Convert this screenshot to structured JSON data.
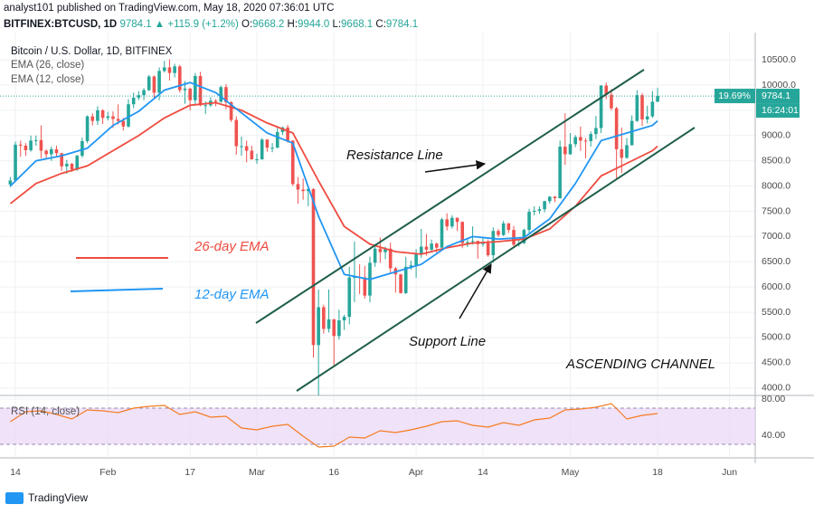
{
  "header": {
    "publisher": "analyst101 published on TradingView.com, May 18, 2020 07:36:01 UTC",
    "symbol": "BITFINEX:BTCUSD, 1D",
    "quote": "9784.1 ▲ +115.9 (+1.2%)",
    "ohlc": [
      {
        "label": "O:",
        "value": "9668.2"
      },
      {
        "label": "H:",
        "value": "9944.0"
      },
      {
        "label": "L:",
        "value": "9668.1"
      },
      {
        "label": "C:",
        "value": "9784.1"
      }
    ]
  },
  "chart_data": [
    {
      "type": "candlestick",
      "title": "Bitcoin / U.S. Dollar, 1D, BITFINEX",
      "up_color": "#26a69a",
      "down_color": "#ef5350",
      "x": [
        "2020-01-13",
        "2020-01-14",
        "2020-01-15",
        "2020-01-16",
        "2020-01-17",
        "2020-01-18",
        "2020-01-19",
        "2020-01-20",
        "2020-01-21",
        "2020-01-22",
        "2020-01-23",
        "2020-01-24",
        "2020-01-25",
        "2020-01-26",
        "2020-01-27",
        "2020-01-28",
        "2020-01-29",
        "2020-01-30",
        "2020-01-31",
        "2020-02-01",
        "2020-02-02",
        "2020-02-03",
        "2020-02-04",
        "2020-02-05",
        "2020-02-06",
        "2020-02-07",
        "2020-02-08",
        "2020-02-09",
        "2020-02-10",
        "2020-02-11",
        "2020-02-12",
        "2020-02-13",
        "2020-02-14",
        "2020-02-15",
        "2020-02-16",
        "2020-02-17",
        "2020-02-18",
        "2020-02-19",
        "2020-02-20",
        "2020-02-21",
        "2020-02-22",
        "2020-02-23",
        "2020-02-24",
        "2020-02-25",
        "2020-02-26",
        "2020-02-27",
        "2020-02-28",
        "2020-02-29",
        "2020-03-01",
        "2020-03-02",
        "2020-03-03",
        "2020-03-04",
        "2020-03-05",
        "2020-03-06",
        "2020-03-07",
        "2020-03-08",
        "2020-03-09",
        "2020-03-10",
        "2020-03-11",
        "2020-03-12",
        "2020-03-13",
        "2020-03-14",
        "2020-03-15",
        "2020-03-16",
        "2020-03-17",
        "2020-03-18",
        "2020-03-19",
        "2020-03-20",
        "2020-03-21",
        "2020-03-22",
        "2020-03-23",
        "2020-03-24",
        "2020-03-25",
        "2020-03-26",
        "2020-03-27",
        "2020-03-28",
        "2020-03-29",
        "2020-03-30",
        "2020-03-31",
        "2020-04-01",
        "2020-04-02",
        "2020-04-03",
        "2020-04-04",
        "2020-04-05",
        "2020-04-06",
        "2020-04-07",
        "2020-04-08",
        "2020-04-09",
        "2020-04-10",
        "2020-04-11",
        "2020-04-12",
        "2020-04-13",
        "2020-04-14",
        "2020-04-15",
        "2020-04-16",
        "2020-04-17",
        "2020-04-18",
        "2020-04-19",
        "2020-04-20",
        "2020-04-21",
        "2020-04-22",
        "2020-04-23",
        "2020-04-24",
        "2020-04-25",
        "2020-04-26",
        "2020-04-27",
        "2020-04-28",
        "2020-04-29",
        "2020-04-30",
        "2020-05-01",
        "2020-05-02",
        "2020-05-03",
        "2020-05-04",
        "2020-05-05",
        "2020-05-06",
        "2020-05-07",
        "2020-05-08",
        "2020-05-09",
        "2020-05-10",
        "2020-05-11",
        "2020-05-12",
        "2020-05-13",
        "2020-05-14",
        "2020-05-15",
        "2020-05-16",
        "2020-05-17",
        "2020-05-18"
      ],
      "open": [
        8030,
        8110,
        8820,
        8800,
        8710,
        8900,
        8910,
        8700,
        8630,
        8730,
        8650,
        8390,
        8440,
        8330,
        8600,
        8890,
        9380,
        9290,
        9500,
        9350,
        9380,
        9330,
        9290,
        9180,
        9620,
        9750,
        9800,
        9900,
        10170,
        9850,
        10280,
        10350,
        10240,
        10370,
        9900,
        9930,
        9700,
        10180,
        9600,
        9600,
        9690,
        9670,
        9960,
        9660,
        9310,
        8790,
        8790,
        8700,
        8530,
        8530,
        8920,
        8760,
        8760,
        9070,
        9160,
        8900,
        8040,
        7930,
        7900,
        7940,
        4850,
        5600,
        5170,
        5360,
        5030,
        5340,
        5410,
        6190,
        6200,
        6190,
        5830,
        6480,
        6760,
        6690,
        6760,
        6370,
        6250,
        5880,
        6400,
        6430,
        6650,
        6800,
        6740,
        6860,
        6780,
        7340,
        7200,
        7370,
        7290,
        6870,
        6890,
        6910,
        6850,
        6870,
        6630,
        7110,
        7030,
        7260,
        7130,
        6840,
        6870,
        7130,
        7490,
        7510,
        7540,
        7700,
        7790,
        7760,
        8780,
        8630,
        8830,
        8970,
        8900,
        8890,
        9030,
        9150,
        9990,
        9810,
        9540,
        8730,
        8560,
        8810,
        9290,
        9800,
        9320,
        9380,
        9668.2
      ],
      "high": [
        8180,
        8880,
        8900,
        8850,
        9000,
        9000,
        9200,
        8730,
        8780,
        8800,
        8660,
        8520,
        8460,
        8620,
        8960,
        9400,
        9440,
        9580,
        9520,
        9470,
        9480,
        9620,
        9350,
        9720,
        9850,
        9880,
        9940,
        10200,
        10190,
        10350,
        10480,
        10510,
        10420,
        10400,
        10080,
        9950,
        10240,
        10260,
        9680,
        9760,
        9720,
        9990,
        10020,
        9680,
        9380,
        8980,
        8900,
        8800,
        8640,
        8950,
        8930,
        8850,
        9150,
        9180,
        9210,
        8910,
        8180,
        8150,
        7980,
        7960,
        5950,
        5650,
        5950,
        5370,
        5550,
        5450,
        6400,
        6900,
        6450,
        6420,
        6600,
        6850,
        6980,
        6800,
        6880,
        6400,
        6260,
        6600,
        6520,
        6750,
        7150,
        7050,
        6940,
        6880,
        7370,
        7460,
        7420,
        7380,
        7300,
        6950,
        7200,
        6920,
        6990,
        6940,
        7180,
        7150,
        7310,
        7270,
        7210,
        6950,
        7160,
        7550,
        7600,
        7600,
        7710,
        7800,
        7800,
        8900,
        9440,
        9050,
        9010,
        9180,
        8950,
        9080,
        9390,
        10000,
        10050,
        9920,
        9570,
        9160,
        8950,
        9400,
        9900,
        9840,
        9590,
        9880,
        9944
      ],
      "low": [
        7980,
        8090,
        8580,
        8600,
        8680,
        8800,
        8550,
        8520,
        8500,
        8590,
        8300,
        8240,
        8280,
        8300,
        8560,
        8850,
        9200,
        9210,
        9230,
        9300,
        9150,
        9220,
        9100,
        9160,
        9540,
        9700,
        9700,
        9880,
        9730,
        9700,
        10250,
        10090,
        10150,
        9850,
        9630,
        9500,
        9600,
        9580,
        9430,
        9570,
        9580,
        9650,
        9520,
        9270,
        8620,
        8600,
        8470,
        8520,
        8440,
        8520,
        8680,
        8670,
        8750,
        9010,
        8860,
        8000,
        7650,
        7730,
        7600,
        4600,
        3850,
        5080,
        5100,
        4450,
        4960,
        5150,
        5260,
        5700,
        5860,
        5770,
        5700,
        6400,
        6480,
        6550,
        6280,
        5890,
        5870,
        5860,
        6340,
        6180,
        6580,
        6620,
        6680,
        6680,
        6770,
        7120,
        7160,
        7110,
        6770,
        6790,
        6840,
        6560,
        6800,
        6600,
        6480,
        6990,
        7010,
        7070,
        6780,
        6800,
        6850,
        7030,
        7420,
        7450,
        7480,
        7650,
        7680,
        7750,
        8420,
        8620,
        8770,
        8700,
        8550,
        8780,
        8930,
        9050,
        9720,
        9500,
        8150,
        8260,
        8540,
        8800,
        9270,
        9190,
        9240,
        9350,
        9668.1
      ],
      "close": [
        8110,
        8820,
        8800,
        8710,
        8900,
        8910,
        8700,
        8630,
        8730,
        8650,
        8390,
        8440,
        8330,
        8600,
        8890,
        9380,
        9290,
        9500,
        9350,
        9380,
        9330,
        9290,
        9180,
        9620,
        9750,
        9800,
        9900,
        10170,
        9850,
        10280,
        10350,
        10240,
        10370,
        9900,
        9930,
        9700,
        10180,
        9600,
        9600,
        9690,
        9670,
        9960,
        9660,
        9310,
        8790,
        8790,
        8700,
        8530,
        8530,
        8920,
        8760,
        8760,
        9070,
        9160,
        8900,
        8040,
        7930,
        7900,
        7940,
        4850,
        5600,
        5170,
        5360,
        5030,
        5340,
        5410,
        6190,
        6200,
        6190,
        5830,
        6480,
        6760,
        6690,
        6760,
        6370,
        6250,
        5880,
        6400,
        6430,
        6650,
        6800,
        6740,
        6860,
        6780,
        7340,
        7200,
        7370,
        7290,
        6870,
        6890,
        6910,
        6850,
        6870,
        6630,
        7110,
        7030,
        7260,
        7130,
        6840,
        6870,
        7130,
        7490,
        7510,
        7540,
        7700,
        7790,
        7760,
        8780,
        8630,
        8830,
        8970,
        8900,
        8890,
        9030,
        9150,
        9990,
        9810,
        9540,
        8730,
        8560,
        8810,
        9290,
        9800,
        9320,
        9380,
        9670,
        9784.1
      ],
      "series": [
        {
          "name": "EMA (26, close)",
          "color": "#ef4b3f",
          "x": [
            "2020-01-13",
            "2020-01-18",
            "2020-01-23",
            "2020-01-28",
            "2020-02-02",
            "2020-02-07",
            "2020-02-12",
            "2020-02-17",
            "2020-02-22",
            "2020-02-27",
            "2020-03-03",
            "2020-03-08",
            "2020-03-13",
            "2020-03-18",
            "2020-03-23",
            "2020-03-28",
            "2020-04-02",
            "2020-04-07",
            "2020-04-12",
            "2020-04-17",
            "2020-04-22",
            "2020-04-27",
            "2020-05-02",
            "2020-05-07",
            "2020-05-12",
            "2020-05-17",
            "2020-05-18"
          ],
          "values": [
            7650,
            8050,
            8250,
            8400,
            8700,
            9000,
            9350,
            9600,
            9650,
            9500,
            9250,
            9050,
            8100,
            7200,
            6850,
            6700,
            6650,
            6780,
            6870,
            6900,
            6950,
            7150,
            7600,
            8200,
            8450,
            8700,
            8790
          ]
        },
        {
          "name": "EMA (12, close)",
          "color": "#2196f3",
          "x": [
            "2020-01-13",
            "2020-01-18",
            "2020-01-23",
            "2020-01-28",
            "2020-02-02",
            "2020-02-07",
            "2020-02-12",
            "2020-02-17",
            "2020-02-22",
            "2020-02-27",
            "2020-03-03",
            "2020-03-08",
            "2020-03-13",
            "2020-03-18",
            "2020-03-23",
            "2020-03-28",
            "2020-04-02",
            "2020-04-07",
            "2020-04-12",
            "2020-04-17",
            "2020-04-22",
            "2020-04-27",
            "2020-05-02",
            "2020-05-07",
            "2020-05-12",
            "2020-05-17",
            "2020-05-18"
          ],
          "values": [
            8000,
            8500,
            8600,
            8750,
            9200,
            9480,
            9900,
            10050,
            9850,
            9450,
            9050,
            8850,
            7400,
            6250,
            6150,
            6300,
            6450,
            6800,
            7000,
            6950,
            6980,
            7350,
            8050,
            8900,
            9050,
            9200,
            9290
          ]
        }
      ],
      "xlim": [
        "2020-01-11",
        "2020-06-06"
      ],
      "xticks": [
        {
          "value": "2020-01-14",
          "label": "14"
        },
        {
          "value": "2020-02-01",
          "label": "Feb"
        },
        {
          "value": "2020-02-17",
          "label": "17"
        },
        {
          "value": "2020-03-01",
          "label": "Mar"
        },
        {
          "value": "2020-03-16",
          "label": "16"
        },
        {
          "value": "2020-04-01",
          "label": "Apr"
        },
        {
          "value": "2020-04-14",
          "label": "14"
        },
        {
          "value": "2020-05-01",
          "label": "May"
        },
        {
          "value": "2020-05-18",
          "label": "18"
        },
        {
          "value": "2020-06-01",
          "label": "Jun"
        }
      ],
      "ylim": [
        3870,
        11040
      ],
      "yticks": [
        {
          "value": 4000,
          "label": "4000.0"
        },
        {
          "value": 4500,
          "label": "4500.0"
        },
        {
          "value": 5000,
          "label": "5000.0"
        },
        {
          "value": 5500,
          "label": "5500.0"
        },
        {
          "value": 6000,
          "label": "6000.0"
        },
        {
          "value": 6500,
          "label": "6500.0"
        },
        {
          "value": 7000,
          "label": "7000.0"
        },
        {
          "value": 7500,
          "label": "7500.0"
        },
        {
          "value": 8000,
          "label": "8000.0"
        },
        {
          "value": 8500,
          "label": "8500.0"
        },
        {
          "value": 9000,
          "label": "9000.0"
        },
        {
          "value": 9500,
          "label": "9500.0"
        },
        {
          "value": 10000,
          "label": "10000.0"
        },
        {
          "value": 10500,
          "label": "10500.0"
        }
      ],
      "grid": true,
      "price_tags": {
        "change": "19.69%",
        "last": "9784.1",
        "countdown": "16:24:01"
      },
      "annotations": {
        "resistance": "Resistance Line",
        "support": "Support Line",
        "ema26": "26-day EMA",
        "ema12": "12-day EMA",
        "channel": "ASCENDING CHANNEL"
      }
    },
    {
      "type": "line",
      "title": "RSI (14, close)",
      "color": "#f57c22",
      "band": [
        30,
        70
      ],
      "band_color": "#e9d6f7",
      "x": [
        "2020-01-13",
        "2020-01-16",
        "2020-01-19",
        "2020-01-22",
        "2020-01-25",
        "2020-01-28",
        "2020-01-31",
        "2020-02-03",
        "2020-02-06",
        "2020-02-09",
        "2020-02-12",
        "2020-02-15",
        "2020-02-18",
        "2020-02-21",
        "2020-02-24",
        "2020-02-27",
        "2020-03-01",
        "2020-03-04",
        "2020-03-07",
        "2020-03-10",
        "2020-03-13",
        "2020-03-16",
        "2020-03-19",
        "2020-03-22",
        "2020-03-25",
        "2020-03-28",
        "2020-03-31",
        "2020-04-03",
        "2020-04-06",
        "2020-04-09",
        "2020-04-12",
        "2020-04-15",
        "2020-04-18",
        "2020-04-21",
        "2020-04-24",
        "2020-04-27",
        "2020-04-30",
        "2020-05-03",
        "2020-05-06",
        "2020-05-09",
        "2020-05-12",
        "2020-05-15",
        "2020-05-18"
      ],
      "values": [
        55,
        66,
        67,
        63,
        58,
        68,
        67,
        65,
        70,
        72,
        73,
        63,
        66,
        60,
        61,
        48,
        46,
        50,
        52,
        39,
        27,
        28,
        38,
        37,
        45,
        43,
        46,
        50,
        55,
        56,
        51,
        49,
        54,
        51,
        57,
        59,
        68,
        69,
        71,
        75,
        58,
        62,
        64
      ],
      "ylim": [
        16,
        83
      ],
      "yticks": [
        {
          "value": 40,
          "label": "40.00"
        },
        {
          "value": 80,
          "label": "80.00"
        }
      ]
    }
  ],
  "footer": "TradingView"
}
